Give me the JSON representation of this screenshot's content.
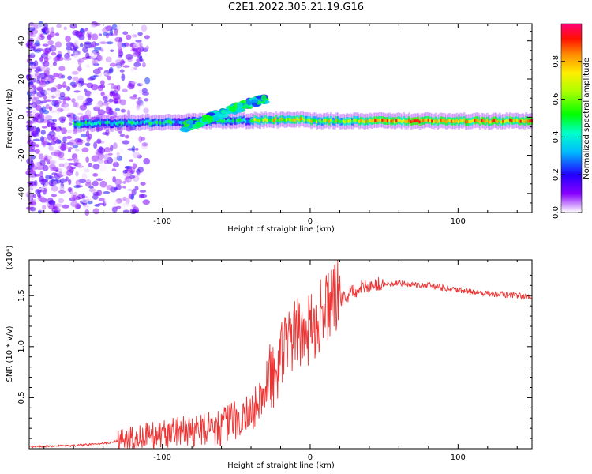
{
  "title": "C2E1.2022.305.21.19.G16",
  "chart_data": [
    {
      "type": "heatmap",
      "xlabel": "Height of straight line (km)",
      "ylabel": "Frequency (Hz)",
      "xlim": [
        -190,
        150
      ],
      "ylim": [
        -50,
        49
      ],
      "xticks": [
        -100,
        0,
        100
      ],
      "yticks": [
        -40,
        -20,
        0,
        20,
        40
      ],
      "colorbar": {
        "label": "Normalized spectral amplitude",
        "range": [
          0.0,
          1.0
        ],
        "ticks": [
          0.0,
          0.2,
          0.4,
          0.6,
          0.8
        ],
        "tick_labels": [
          "0.0",
          "0.2",
          "0.4",
          "0.6",
          "0.8"
        ]
      },
      "features": [
        {
          "x_start": -160,
          "x_end": 150,
          "freq_hz": -2,
          "desc": "main horizontal band"
        },
        {
          "x_start": -85,
          "x_end": -30,
          "freq_hz_start": -5,
          "freq_hz_end": 10,
          "desc": "rising branch"
        }
      ]
    },
    {
      "type": "line",
      "xlabel": "Height of straight line (km)",
      "ylabel": "SNR (10 * v/v)",
      "y_multiplier": "(x10⁴)",
      "xlim": [
        -190,
        150
      ],
      "ylim": [
        0,
        1.85
      ],
      "xticks": [
        -100,
        0,
        100
      ],
      "yticks": [
        0.5,
        1.0,
        1.5
      ],
      "ytick_labels": [
        "0.5",
        "1.0",
        "1.5"
      ],
      "color": "#ee3333",
      "series": [
        {
          "x": [
            -190,
            -160,
            -140,
            -120,
            -100,
            -80,
            -60,
            -40,
            -30,
            -20,
            -15,
            -10,
            0,
            10,
            20,
            30,
            40,
            60,
            80,
            100,
            120,
            150
          ],
          "y": [
            0.02,
            0.03,
            0.05,
            0.1,
            0.15,
            0.18,
            0.22,
            0.35,
            0.55,
            0.8,
            1.0,
            1.05,
            1.1,
            1.3,
            1.45,
            1.55,
            1.6,
            1.62,
            1.6,
            1.55,
            1.52,
            1.49
          ]
        }
      ]
    }
  ]
}
